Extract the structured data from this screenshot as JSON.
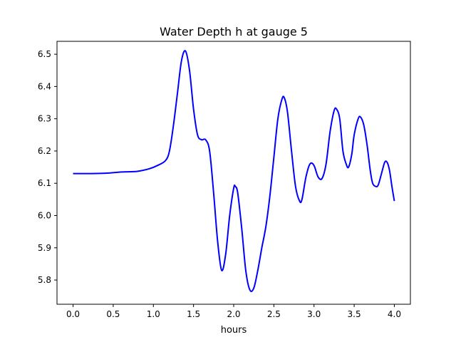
{
  "chart_data": {
    "type": "line",
    "title": "Water Depth h at gauge 5",
    "xlabel": "hours",
    "ylabel": "",
    "xlim": [
      -0.2,
      4.2
    ],
    "ylim": [
      5.725,
      6.54
    ],
    "xticks": [
      0.0,
      0.5,
      1.0,
      1.5,
      2.0,
      2.5,
      3.0,
      3.5,
      4.0
    ],
    "xtick_labels": [
      "0.0",
      "0.5",
      "1.0",
      "1.5",
      "2.0",
      "2.5",
      "3.0",
      "3.5",
      "4.0"
    ],
    "yticks": [
      5.8,
      5.9,
      6.0,
      6.1,
      6.2,
      6.3,
      6.4,
      6.5
    ],
    "ytick_labels": [
      "5.8",
      "5.9",
      "6.0",
      "6.1",
      "6.2",
      "6.3",
      "6.4",
      "6.5"
    ],
    "grid": false,
    "series": [
      {
        "color": "#0000ff",
        "points": [
          [
            0.0,
            6.13
          ],
          [
            0.2,
            6.13
          ],
          [
            0.4,
            6.131
          ],
          [
            0.6,
            6.135
          ],
          [
            0.8,
            6.137
          ],
          [
            0.95,
            6.145
          ],
          [
            1.05,
            6.155
          ],
          [
            1.15,
            6.17
          ],
          [
            1.2,
            6.2
          ],
          [
            1.25,
            6.28
          ],
          [
            1.3,
            6.38
          ],
          [
            1.35,
            6.48
          ],
          [
            1.4,
            6.51
          ],
          [
            1.45,
            6.45
          ],
          [
            1.5,
            6.33
          ],
          [
            1.55,
            6.25
          ],
          [
            1.6,
            6.235
          ],
          [
            1.65,
            6.235
          ],
          [
            1.7,
            6.2
          ],
          [
            1.75,
            6.07
          ],
          [
            1.8,
            5.92
          ],
          [
            1.85,
            5.83
          ],
          [
            1.9,
            5.88
          ],
          [
            1.95,
            6.0
          ],
          [
            2.0,
            6.085
          ],
          [
            2.02,
            6.09
          ],
          [
            2.05,
            6.07
          ],
          [
            2.1,
            5.96
          ],
          [
            2.15,
            5.83
          ],
          [
            2.2,
            5.77
          ],
          [
            2.25,
            5.775
          ],
          [
            2.3,
            5.83
          ],
          [
            2.35,
            5.9
          ],
          [
            2.4,
            5.965
          ],
          [
            2.45,
            6.06
          ],
          [
            2.5,
            6.18
          ],
          [
            2.55,
            6.3
          ],
          [
            2.6,
            6.36
          ],
          [
            2.63,
            6.365
          ],
          [
            2.67,
            6.32
          ],
          [
            2.72,
            6.2
          ],
          [
            2.77,
            6.09
          ],
          [
            2.82,
            6.045
          ],
          [
            2.85,
            6.05
          ],
          [
            2.9,
            6.12
          ],
          [
            2.95,
            6.16
          ],
          [
            3.0,
            6.155
          ],
          [
            3.05,
            6.12
          ],
          [
            3.1,
            6.115
          ],
          [
            3.15,
            6.16
          ],
          [
            3.2,
            6.26
          ],
          [
            3.25,
            6.325
          ],
          [
            3.28,
            6.33
          ],
          [
            3.32,
            6.3
          ],
          [
            3.36,
            6.2
          ],
          [
            3.4,
            6.16
          ],
          [
            3.43,
            6.15
          ],
          [
            3.47,
            6.19
          ],
          [
            3.5,
            6.25
          ],
          [
            3.55,
            6.3
          ],
          [
            3.58,
            6.305
          ],
          [
            3.62,
            6.28
          ],
          [
            3.66,
            6.22
          ],
          [
            3.7,
            6.14
          ],
          [
            3.73,
            6.1
          ],
          [
            3.77,
            6.09
          ],
          [
            3.8,
            6.095
          ],
          [
            3.84,
            6.13
          ],
          [
            3.88,
            6.165
          ],
          [
            3.91,
            6.165
          ],
          [
            3.94,
            6.14
          ],
          [
            3.97,
            6.09
          ],
          [
            4.0,
            6.045
          ]
        ]
      }
    ]
  }
}
